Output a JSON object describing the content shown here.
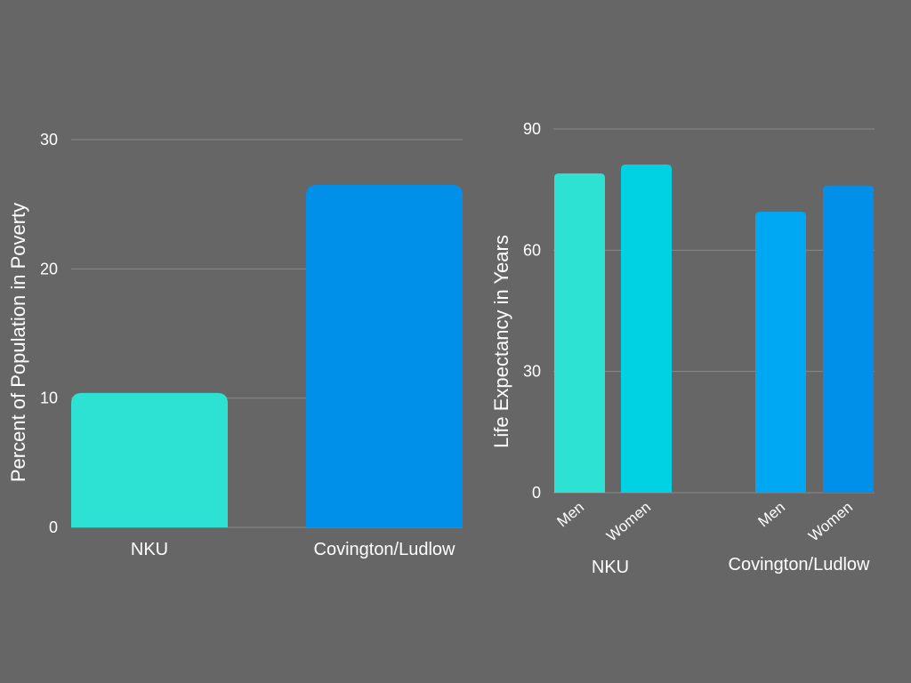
{
  "background": "#666666",
  "grid_color": "#8a8a8a",
  "chart_data": [
    {
      "type": "bar",
      "categories": [
        "NKU",
        "Covington/Ludlow"
      ],
      "values": [
        10.4,
        26.5
      ],
      "colors": [
        "#2de2d2",
        "#0090ea"
      ],
      "xlabel": "",
      "ylabel": "Percent of Population in Poverty",
      "ylim": [
        0,
        30
      ],
      "yticks": [
        0,
        10,
        20,
        30
      ],
      "ytick_labels": [
        "0",
        "10",
        "20",
        "30"
      ],
      "grid": true,
      "legend": "none"
    },
    {
      "type": "bar",
      "groups": [
        "NKU",
        "Covington/Ludlow"
      ],
      "categories": [
        "Men",
        "Women",
        "Men",
        "Women"
      ],
      "group_index": [
        0,
        0,
        1,
        1
      ],
      "values": [
        79,
        81.2,
        69.5,
        76
      ],
      "colors": [
        "#2de2d2",
        "#00d2e4",
        "#00a8f4",
        "#0090ea"
      ],
      "xlabel": "",
      "ylabel": "Life Expectancy in Years",
      "ylim": [
        0,
        90
      ],
      "yticks": [
        0,
        30,
        60,
        90
      ],
      "ytick_labels": [
        "0",
        "30",
        "60",
        "90"
      ],
      "grid": true,
      "legend": "none"
    }
  ]
}
